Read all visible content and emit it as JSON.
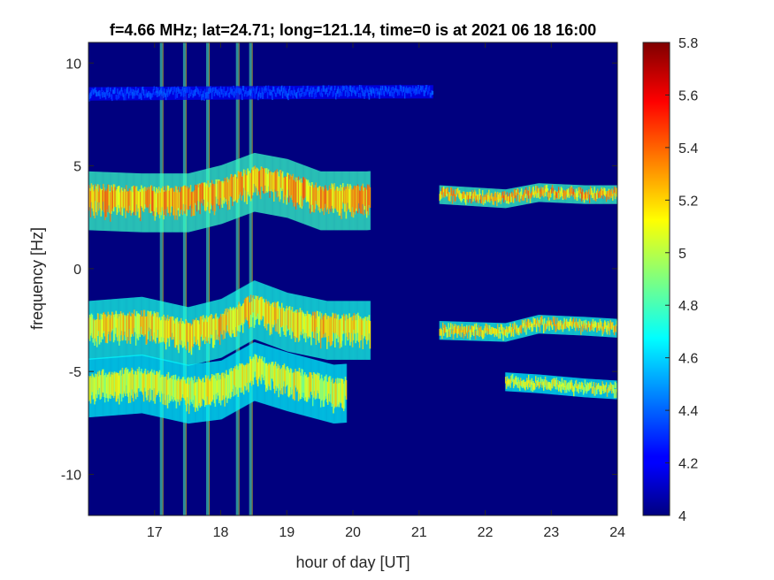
{
  "chart_data": {
    "type": "heatmap",
    "title": "f=4.66 MHz;  lat=24.71; long=121.14, time=0 is at 2021 06 18 16:00",
    "xlabel": "hour of day [UT]",
    "ylabel": "frequency [Hz]",
    "xlim": [
      16,
      24
    ],
    "ylim": [
      -12,
      11
    ],
    "xticks": [
      "17",
      "18",
      "19",
      "20",
      "21",
      "22",
      "23",
      "24"
    ],
    "yticks": [
      "10",
      "5",
      "0",
      "-5",
      "-10"
    ],
    "colorbar": {
      "colormap": "jet",
      "clim": [
        4,
        5.8
      ],
      "ticks": [
        "5.8",
        "5.6",
        "5.4",
        "5.2",
        "5",
        "4.8",
        "4.6",
        "4.4",
        "4.2",
        "4"
      ]
    },
    "background_color": "#00007f",
    "traces": [
      {
        "description": "Doppler trace near +8.5 Hz",
        "hours": [
          16.0,
          20.5,
          21.2
        ],
        "freq_hz": [
          8.5,
          8.6,
          8.6
        ],
        "level": 4.4
      },
      {
        "description": "Doppler trace near +3.5 Hz",
        "hours": [
          16.0,
          16.8,
          17.5,
          18.0,
          18.5,
          19.0,
          19.5,
          20.2,
          21.3,
          22.3,
          22.8,
          23.5,
          24.0
        ],
        "freq_hz": [
          3.3,
          3.2,
          3.2,
          3.6,
          4.2,
          3.9,
          3.3,
          3.3,
          3.6,
          3.4,
          3.7,
          3.6,
          3.6
        ],
        "level": 5.4
      },
      {
        "description": "Doppler trace near -3 Hz",
        "hours": [
          16.0,
          16.8,
          17.5,
          18.0,
          18.5,
          19.0,
          19.6,
          21.3,
          22.3,
          22.8,
          23.5,
          24.0
        ],
        "freq_hz": [
          -3.0,
          -2.8,
          -3.3,
          -2.9,
          -2.0,
          -2.6,
          -3.0,
          -3.0,
          -3.1,
          -2.7,
          -2.8,
          -2.9
        ],
        "level": 5.3
      },
      {
        "description": "Doppler trace near -5.5 Hz",
        "hours": [
          16.0,
          16.8,
          17.5,
          18.0,
          18.5,
          19.0,
          19.7,
          22.3,
          22.8,
          23.5,
          24.0
        ],
        "freq_hz": [
          -5.8,
          -5.6,
          -6.1,
          -5.9,
          -5.0,
          -5.5,
          -6.1,
          -5.5,
          -5.6,
          -5.8,
          -5.9
        ],
        "level": 5.2
      }
    ],
    "vertical_interference_hours": [
      17.1,
      17.45,
      17.8,
      18.25,
      18.45
    ]
  }
}
